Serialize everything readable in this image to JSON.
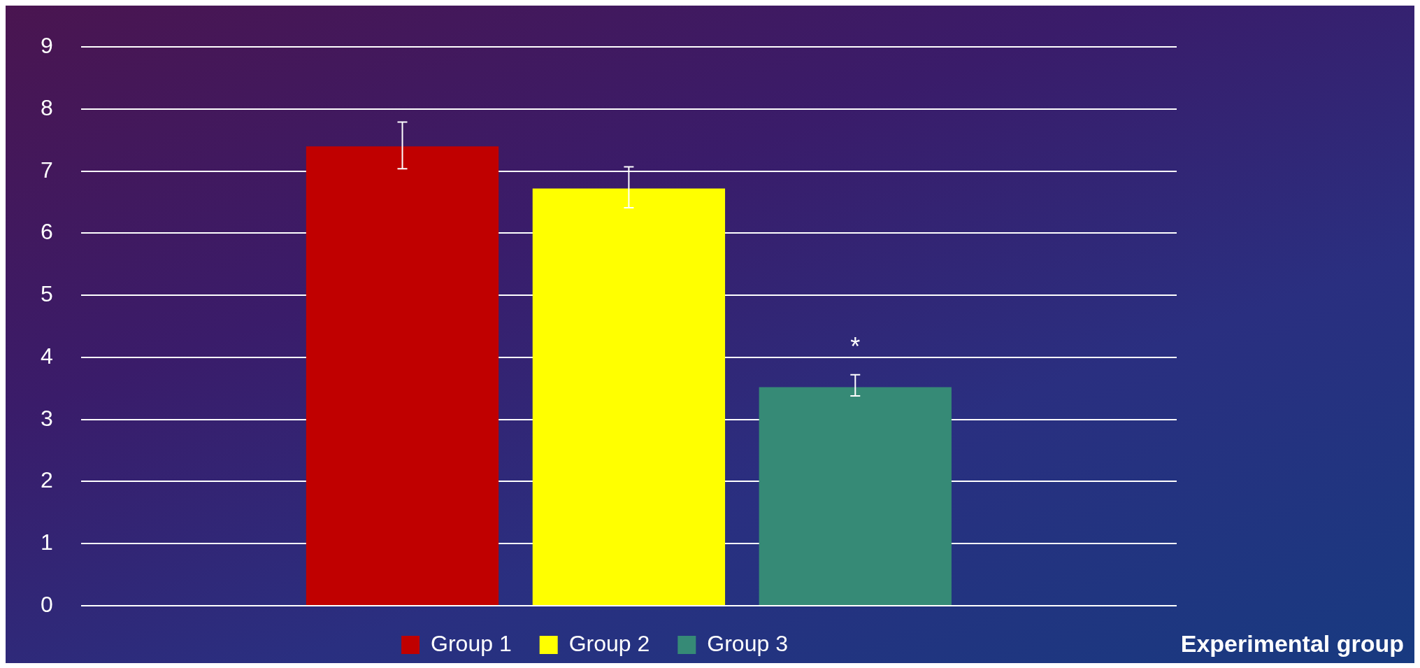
{
  "chart_data": {
    "type": "bar",
    "xlabel": "Experimental group",
    "categories": [
      null
    ],
    "series": [
      {
        "name": "Group 1",
        "color": "#c00000",
        "values": [
          7.4
        ],
        "errors": [
          [
            7.04,
            7.79
          ]
        ]
      },
      {
        "name": "Group 2",
        "color": "#ffff00",
        "values": [
          6.72
        ],
        "errors": [
          [
            6.41,
            7.07
          ]
        ]
      },
      {
        "name": "Group 3",
        "color": "#368a76",
        "values": [
          3.52
        ],
        "errors": [
          [
            3.38,
            3.72
          ]
        ]
      }
    ],
    "ylim": [
      0,
      9
    ],
    "yticks": [
      0,
      1,
      2,
      3,
      4,
      5,
      6,
      7,
      8,
      9
    ],
    "grid": "y",
    "legend": "bottom",
    "annotations": [
      "*"
    ]
  }
}
